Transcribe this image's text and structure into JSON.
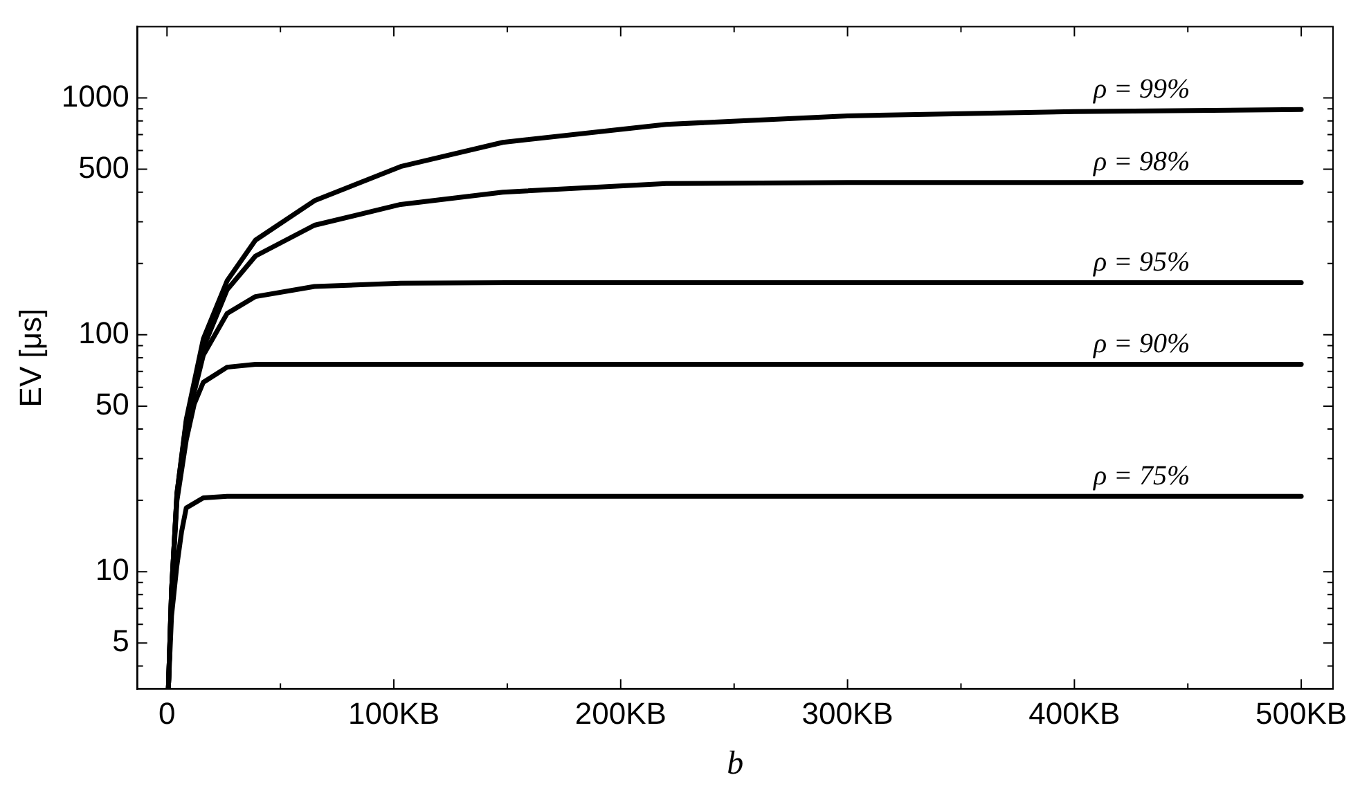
{
  "chart_data": {
    "type": "line",
    "xlabel": "b",
    "ylabel": "EV [μs]",
    "log": "y",
    "grid": false,
    "legend": false,
    "marker": "none",
    "line_style": "solid",
    "xlim": [
      -13,
      514
    ],
    "ylim": [
      3.2,
      2000
    ],
    "xticks": [
      0,
      {
        "value": 50,
        "label": null
      },
      {
        "value": 100,
        "label": "100KB"
      },
      {
        "value": 150,
        "label": null
      },
      {
        "value": 200,
        "label": "200KB"
      },
      {
        "value": 250,
        "label": null
      },
      {
        "value": 300,
        "label": "300KB"
      },
      {
        "value": 350,
        "label": null
      },
      {
        "value": 400,
        "label": "400KB"
      },
      {
        "value": 450,
        "label": null
      },
      {
        "value": 500,
        "label": "500KB"
      }
    ],
    "yticks": [
      {
        "value": 4,
        "label": null
      },
      5,
      {
        "value": 6,
        "label": null
      },
      {
        "value": 7,
        "label": null
      },
      {
        "value": 8,
        "label": null
      },
      {
        "value": 9,
        "label": null
      },
      10,
      {
        "value": 20,
        "label": null
      },
      {
        "value": 30,
        "label": null
      },
      {
        "value": 40,
        "label": null
      },
      50,
      {
        "value": 60,
        "label": null
      },
      {
        "value": 70,
        "label": null
      },
      {
        "value": 80,
        "label": null
      },
      {
        "value": 90,
        "label": null
      },
      100,
      {
        "value": 200,
        "label": null
      },
      {
        "value": 300,
        "label": null
      },
      {
        "value": 400,
        "label": null
      },
      500,
      {
        "value": 600,
        "label": null
      },
      {
        "value": 700,
        "label": null
      },
      {
        "value": 800,
        "label": null
      },
      {
        "value": 900,
        "label": null
      },
      1000
    ],
    "series": [
      {
        "name": "ρ = 99%",
        "color": "#000000",
        "x": [
          0.6,
          2,
          4.4,
          8.5,
          16,
          26.5,
          39,
          65,
          103,
          148,
          220,
          300,
          400,
          500
        ],
        "values": [
          3.2,
          8.3,
          21.5,
          44,
          96,
          169,
          251,
          368,
          513,
          649,
          773,
          840,
          875,
          893
        ]
      },
      {
        "name": "ρ = 98%",
        "color": "#000000",
        "x": [
          0.6,
          2,
          4.4,
          8.5,
          16,
          26.5,
          39,
          65,
          103,
          148,
          220,
          300,
          500
        ],
        "values": [
          3.2,
          8.3,
          21.5,
          43,
          88,
          155,
          215,
          290,
          355,
          400,
          435,
          439,
          440
        ]
      },
      {
        "name": "ρ = 95%",
        "color": "#000000",
        "x": [
          0.6,
          2,
          4.4,
          8.5,
          16,
          26.5,
          39,
          65,
          103,
          150,
          500
        ],
        "values": [
          3.2,
          8.3,
          21,
          42,
          82,
          123,
          145,
          160,
          165,
          166,
          166
        ]
      },
      {
        "name": "ρ = 90%",
        "color": "#000000",
        "x": [
          0.6,
          2,
          4.4,
          8.5,
          12,
          16,
          26.5,
          39,
          500
        ],
        "values": [
          3.2,
          8,
          20,
          36,
          51,
          63,
          73,
          75,
          75
        ]
      },
      {
        "name": "ρ = 75%",
        "color": "#000000",
        "x": [
          0.6,
          2,
          4.3,
          6.4,
          8.5,
          16,
          26.5,
          500
        ],
        "values": [
          3.2,
          6.5,
          10.5,
          14.7,
          18.6,
          20.5,
          20.8,
          20.8
        ]
      }
    ]
  }
}
